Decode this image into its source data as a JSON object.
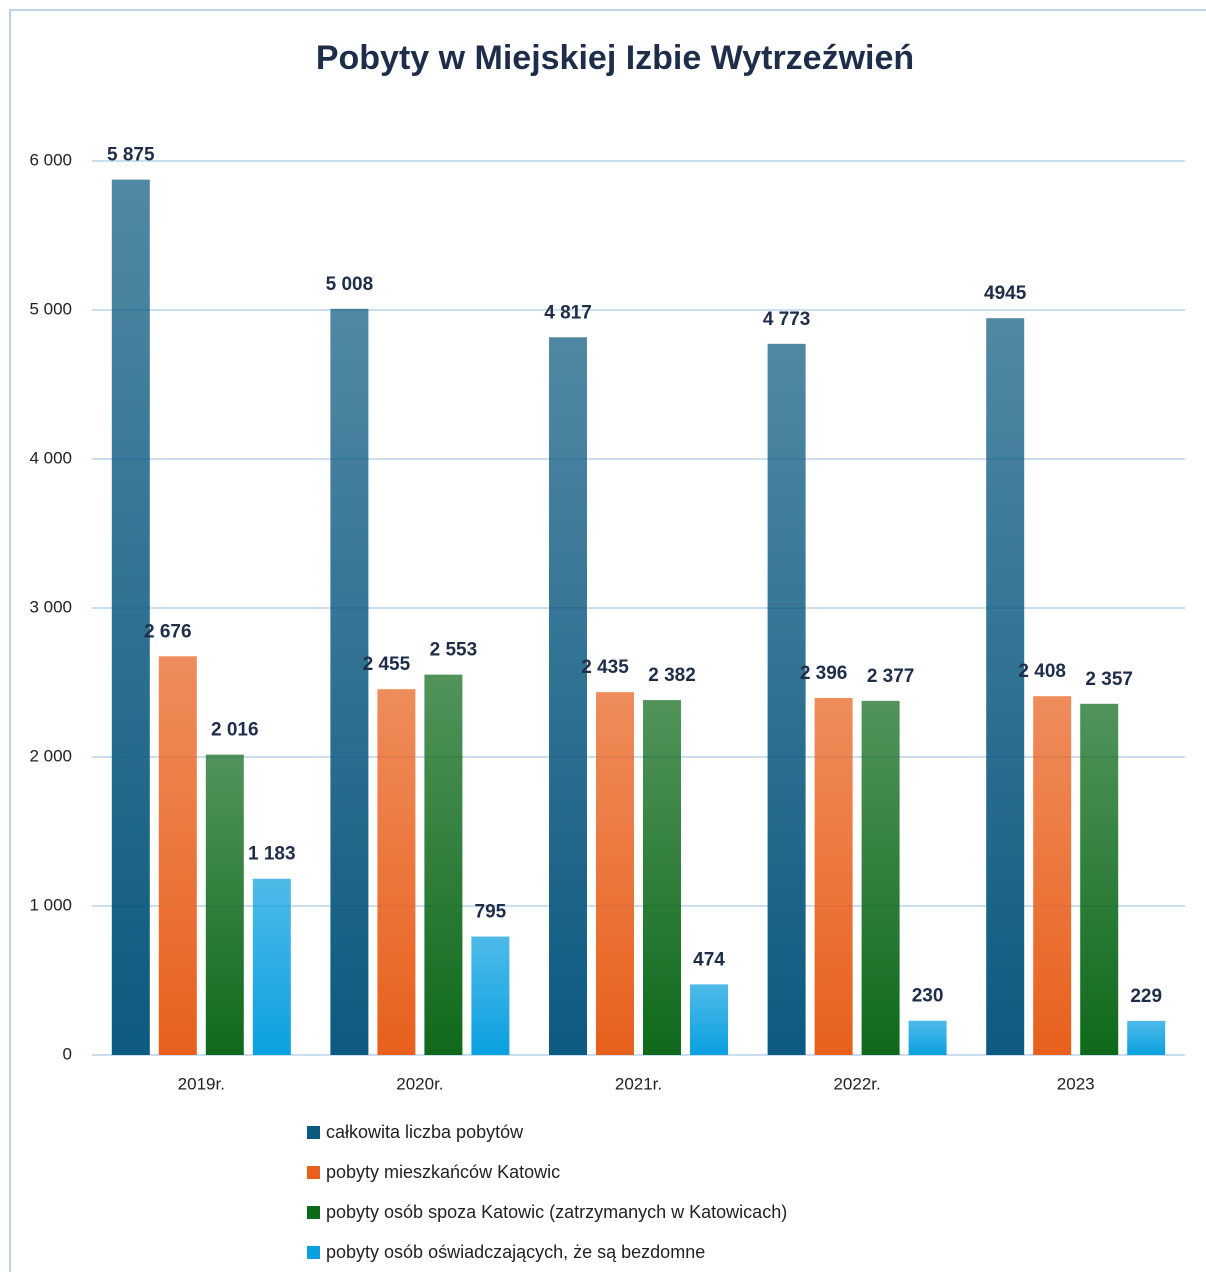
{
  "chart_data": {
    "type": "bar",
    "title": "Pobyty w Miejskiej Izbie Wytrzeźwień",
    "categories": [
      "2019r.",
      "2020r.",
      "2021r.",
      "2022r.",
      "2023"
    ],
    "series": [
      {
        "name": "całkowita liczba pobytów",
        "color": "#0d5a80",
        "values": [
          5875,
          5008,
          4817,
          4773,
          4945
        ],
        "value_labels": [
          "5 875",
          "5 008",
          "4 817",
          "4 773",
          "4945"
        ]
      },
      {
        "name": "pobyty mieszkańców Katowic",
        "color": "#e8601c",
        "values": [
          2676,
          2455,
          2435,
          2396,
          2408
        ],
        "value_labels": [
          "2 676",
          "2 455",
          "2 435",
          "2 396",
          "2 408"
        ]
      },
      {
        "name": "pobyty osób spoza  Katowic (zatrzymanych w Katowicach)",
        "color": "#0e6a1a",
        "values": [
          2016,
          2553,
          2382,
          2377,
          2357
        ],
        "value_labels": [
          "2 016",
          "2 553",
          "2 382",
          "2 377",
          "2 357"
        ]
      },
      {
        "name": "pobyty osób oświadczających, że są bezdomne",
        "color": "#0aa0e0",
        "values": [
          1183,
          795,
          474,
          230,
          229
        ],
        "value_labels": [
          "1 183",
          "795",
          "474",
          "230",
          "229"
        ]
      }
    ],
    "ylim": [
      0,
      6000
    ],
    "yticks": [
      0,
      {
        "value": 1000,
        "label": "1 000"
      },
      {
        "value": 2000,
        "label": "2 000"
      },
      {
        "value": 3000,
        "label": "3 000"
      },
      {
        "value": 4000,
        "label": "4 000"
      },
      {
        "value": 5000,
        "label": "5 000"
      },
      {
        "value": 6000,
        "label": "6 000"
      }
    ],
    "grid": true
  }
}
